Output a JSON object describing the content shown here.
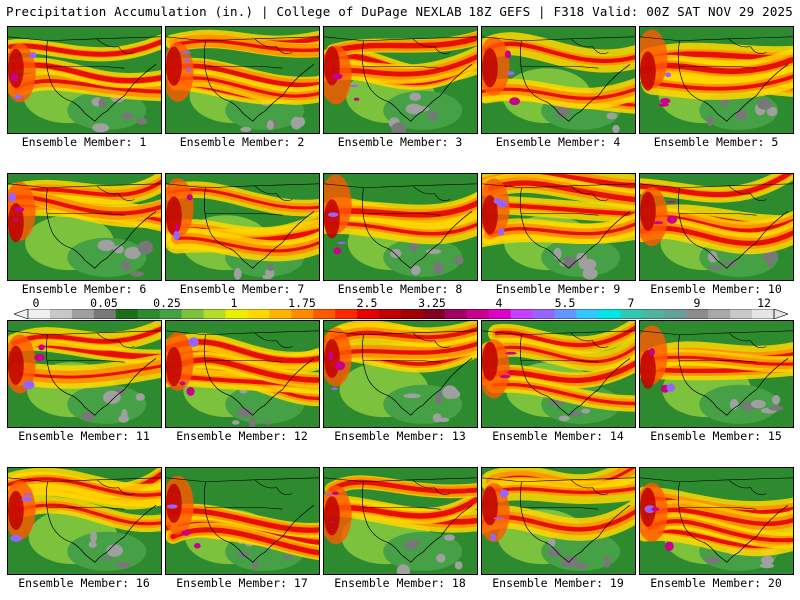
{
  "header": {
    "left_title": "Precipitation Accumulation (in.) | College of DuPage NEXLAB",
    "right_title": "18Z GEFS | F318 Valid: 00Z SAT NOV 29 2025"
  },
  "panels": [
    "Ensemble Member: 1",
    "Ensemble Member: 2",
    "Ensemble Member: 3",
    "Ensemble Member: 4",
    "Ensemble Member: 5",
    "Ensemble Member: 6",
    "Ensemble Member: 7",
    "Ensemble Member: 8",
    "Ensemble Member: 9",
    "Ensemble Member: 10",
    "Ensemble Member: 11",
    "Ensemble Member: 12",
    "Ensemble Member: 13",
    "Ensemble Member: 14",
    "Ensemble Member: 15",
    "Ensemble Member: 16",
    "Ensemble Member: 17",
    "Ensemble Member: 18",
    "Ensemble Member: 19",
    "Ensemble Member: 20"
  ],
  "legend": {
    "ticks": [
      "0",
      "0.05",
      "0.25",
      "1",
      "1.75",
      "2.5",
      "3.25",
      "4",
      "5.5",
      "7",
      "9",
      "12"
    ],
    "colors": [
      "#f0f0f0",
      "#c8c8c8",
      "#a0a0a0",
      "#787878",
      "#1a6e1a",
      "#2e8a2e",
      "#46a046",
      "#7cc23c",
      "#b4dc2a",
      "#e8f000",
      "#ffd800",
      "#ffb400",
      "#ff8c00",
      "#ff5a00",
      "#ff2800",
      "#e60000",
      "#c00000",
      "#a00000",
      "#800020",
      "#a00060",
      "#c8008c",
      "#e000c8",
      "#c840ff",
      "#9664ff",
      "#6496ff",
      "#32c8ff",
      "#00e6e6",
      "#32c8b4",
      "#50b4a0",
      "#64a096",
      "#8c8c8c",
      "#a8a8a8",
      "#c8c8c8",
      "#e6e6e6"
    ]
  }
}
